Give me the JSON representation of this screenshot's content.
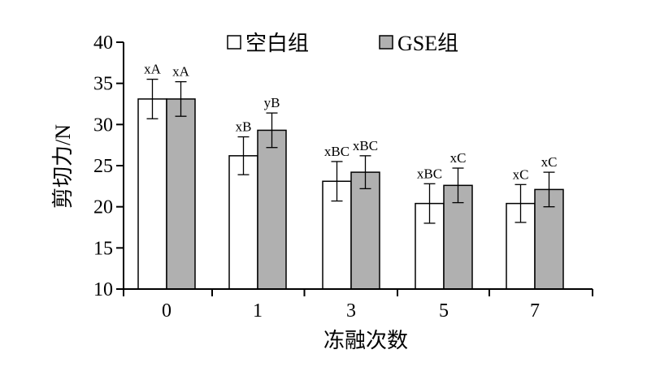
{
  "chart_data": {
    "type": "bar",
    "xlabel": "冻融次数",
    "ylabel": "剪切力/N",
    "ylim": [
      10,
      40
    ],
    "yticks": [
      10,
      15,
      20,
      25,
      30,
      35,
      40
    ],
    "categories": [
      "0",
      "1",
      "3",
      "5",
      "7"
    ],
    "legend_position": "top",
    "grid": false,
    "series": [
      {
        "name": "空白组",
        "color": "#ffffff",
        "values": [
          33.1,
          26.2,
          23.1,
          20.4,
          20.4
        ],
        "errors": [
          2.4,
          2.3,
          2.4,
          2.4,
          2.3
        ],
        "labels": [
          "xA",
          "xB",
          "xBC",
          "xBC",
          "xC"
        ]
      },
      {
        "name": "GSE组",
        "color": "#b0b0b0",
        "values": [
          33.1,
          29.3,
          24.2,
          22.6,
          22.1
        ],
        "errors": [
          2.1,
          2.1,
          2.0,
          2.1,
          2.1
        ],
        "labels": [
          "xA",
          "yB",
          "xBC",
          "xC",
          "xC"
        ]
      }
    ]
  }
}
